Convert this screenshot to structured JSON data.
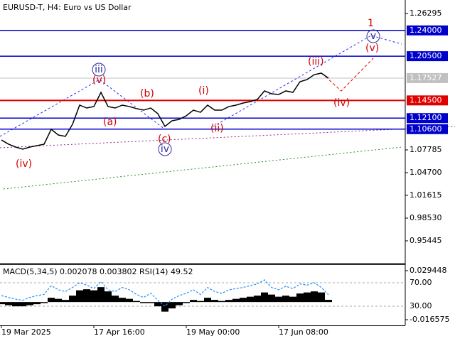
{
  "chart_data": [
    {
      "type": "line",
      "title": "EURUSD-T, H4:  Euro vs US Dollar",
      "categories": [
        "19 Mar 2025",
        null,
        null,
        null,
        null,
        null,
        null,
        null,
        null,
        null,
        null,
        null,
        null,
        "17 Apr 16:00",
        null,
        null,
        null,
        null,
        null,
        null,
        null,
        null,
        null,
        null,
        null,
        null,
        "19 May 00:00",
        null,
        null,
        null,
        null,
        null,
        null,
        null,
        null,
        null,
        null,
        null,
        null,
        "17 Jun 08:00",
        null,
        null,
        null,
        null,
        null,
        null,
        null
      ],
      "values": [
        1.0913,
        1.0856,
        1.0817,
        1.0788,
        1.0817,
        1.0836,
        1.0856,
        1.1058,
        1.0981,
        1.0962,
        1.1126,
        1.1386,
        1.1347,
        1.1367,
        1.1559,
        1.1367,
        1.1347,
        1.1386,
        1.1367,
        1.1338,
        1.1318,
        1.1347,
        1.127,
        1.1097,
        1.1174,
        1.1193,
        1.1241,
        1.1318,
        1.1289,
        1.1386,
        1.1318,
        1.1318,
        1.1367,
        1.1386,
        1.1415,
        1.1434,
        1.1463,
        1.1579,
        1.154,
        1.153,
        1.1579,
        1.1559,
        1.1704,
        1.1733,
        1.18,
        1.182,
        1.1752
      ],
      "color": "#000000",
      "ylim": [
        0.92456,
        1.28126
      ],
      "yticks": [
        1.26295,
        1.07785,
        {
          "value": 1.047,
          "label": "1.04700"
        },
        1.01615,
        {
          "value": 0.9853,
          "label": "0.98530"
        },
        0.95445
      ],
      "levels": [
        {
          "value": 1.24,
          "label": "1.24000",
          "color": "#0000cc"
        },
        {
          "value": 1.205,
          "label": "1.20500",
          "color": "#0000cc"
        },
        {
          "value": 1.145,
          "label": "1.14500",
          "color": "#e00000"
        },
        {
          "value": 1.121,
          "label": "1.12100",
          "color": "#0000cc"
        },
        {
          "value": 1.106,
          "label": "1.10600",
          "color": "#0000cc"
        }
      ],
      "last_price": {
        "value": 1.17527,
        "label": "1.17527",
        "color": "#c0c0c0"
      },
      "annotations": [
        {
          "text": "(iv)",
          "color": "#d00000"
        },
        {
          "text": "(v)",
          "color": "#d00000"
        },
        {
          "text": "iii",
          "color": "#2a2aa0"
        },
        {
          "text": "(a)",
          "color": "#d00000"
        },
        {
          "text": "(b)",
          "color": "#d00000"
        },
        {
          "text": "(c)",
          "color": "#d00000"
        },
        {
          "text": "iv",
          "color": "#2a2aa0"
        },
        {
          "text": "(i)",
          "color": "#d00000"
        },
        {
          "text": "(ii)",
          "color": "#d00000"
        },
        {
          "text": "(iii)",
          "color": "#d00000"
        },
        {
          "text": "1",
          "color": "#d00000"
        },
        {
          "text": "v",
          "color": "#2a2aa0"
        },
        {
          "text": "(v)",
          "color": "#d00000"
        },
        {
          "text": "(iv)",
          "color": "#d00000"
        }
      ]
    },
    {
      "type": "combo",
      "title": "MACD(5,34,5) 0.002078 0.003802 RSI(14) 49.52",
      "series": [
        {
          "type": "bar",
          "axis": "y2",
          "color": "#000000",
          "values": [
            -0.002,
            -0.003,
            -0.004,
            -0.004,
            -0.003,
            -0.002,
            -0.001,
            0.004,
            0.003,
            0.002,
            0.006,
            0.011,
            0.012,
            0.011,
            0.014,
            0.01,
            0.006,
            0.004,
            0.003,
            0.001,
            -0.001,
            -0.001,
            -0.004,
            -0.009,
            -0.006,
            -0.003,
            -0.001,
            0.002,
            0.001,
            0.004,
            0.002,
            0.001,
            0.002,
            0.003,
            0.004,
            0.005,
            0.006,
            0.009,
            0.007,
            0.005,
            0.006,
            0.005,
            0.008,
            0.009,
            0.01,
            0.009,
            0.002078
          ]
        },
        {
          "type": "line",
          "color": "#1e90ff",
          "values": [
            48,
            45,
            42,
            40,
            45,
            48,
            50,
            65,
            58,
            55,
            62,
            70,
            66,
            60,
            72,
            58,
            55,
            62,
            58,
            50,
            45,
            52,
            40,
            30,
            42,
            48,
            52,
            58,
            50,
            62,
            55,
            52,
            58,
            60,
            62,
            65,
            68,
            75,
            62,
            58,
            64,
            60,
            68,
            66,
            70,
            62,
            49.52
          ]
        }
      ],
      "ylim": [
        -2.73,
        101.5
      ],
      "yticks": [
        {
          "value": 70,
          "label": "70.00"
        },
        {
          "value": 30,
          "label": "30.00"
        }
      ],
      "y2lim": [
        -0.02191,
        0.03545
      ],
      "y2ticks": [
        0.029448,
        -0.016575
      ]
    }
  ]
}
